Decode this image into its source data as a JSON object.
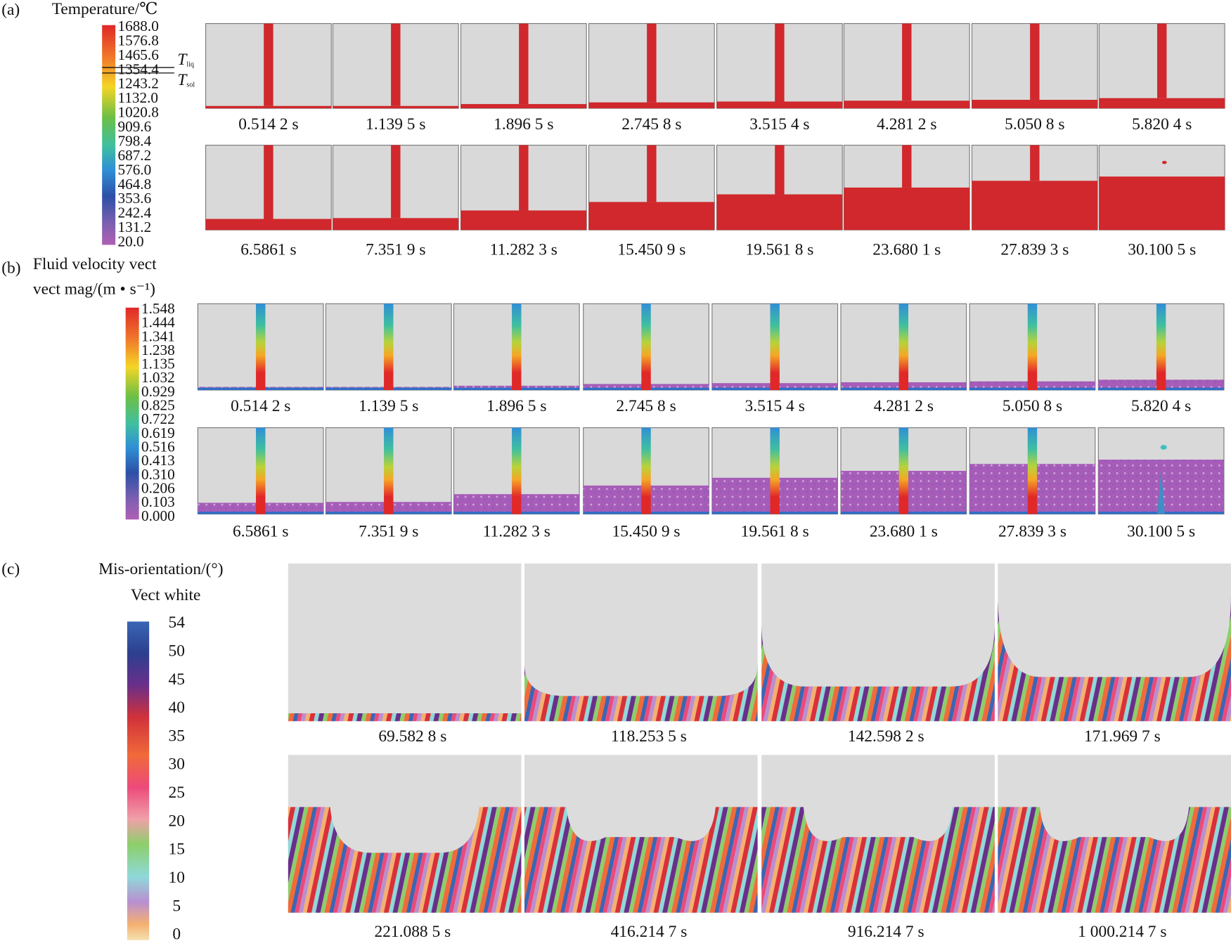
{
  "panel_a": {
    "label": "(a)",
    "legend_title": "Temperature/℃",
    "legend_ticks": [
      "1688.0",
      "1576.8",
      "1465.6",
      "1354.4",
      "1243.2",
      "1132.0",
      "1020.8",
      "909.6",
      "798.4",
      "687.2",
      "576.0",
      "464.8",
      "353.6",
      "242.4",
      "131.2",
      "20.0"
    ],
    "liquidus": {
      "symbol": "T",
      "sub": "liq"
    },
    "solidus": {
      "symbol": "T",
      "sub": "sol"
    },
    "times": [
      "0.514 2 s",
      "1.139 5 s",
      "1.896 5 s",
      "2.745 8 s",
      "3.515 4 s",
      "4.281 2 s",
      "5.050 8 s",
      "5.820 4 s",
      "6.5861 s",
      "7.351 9 s",
      "11.282 3 s",
      "15.450 9 s",
      "19.561 8 s",
      "23.680 1 s",
      "27.839 3 s",
      "30.100 5 s"
    ]
  },
  "panel_b": {
    "label": "(b)",
    "legend_title_line1": "Fluid velocity vect",
    "legend_title_line2": "vect mag/(m • s⁻¹)",
    "legend_ticks": [
      "1.548",
      "1.444",
      "1.341",
      "1.238",
      "1.135",
      "1.032",
      "0.929",
      "0.825",
      "0.722",
      "0.619",
      "0.516",
      "0.413",
      "0.310",
      "0.206",
      "0.103",
      "0.000"
    ],
    "times": [
      "0.514 2 s",
      "1.139 5 s",
      "1.896 5 s",
      "2.745 8 s",
      "3.515 4 s",
      "4.281 2 s",
      "5.050 8 s",
      "5.820 4 s",
      "6.5861 s",
      "7.351 9 s",
      "11.282 3 s",
      "15.450 9 s",
      "19.561 8 s",
      "23.680 1 s",
      "27.839 3 s",
      "30.100 5 s"
    ]
  },
  "panel_c": {
    "label": "(c)",
    "legend_title_line1": "Mis-orientation/(°)",
    "legend_title_line2": "Vect white",
    "legend_ticks": [
      "54",
      "50",
      "45",
      "40",
      "35",
      "30",
      "25",
      "20",
      "15",
      "10",
      "5",
      "0"
    ],
    "times": [
      "69.582 8 s",
      "118.253 5 s",
      "142.598 2 s",
      "171.969 7 s",
      "221.088 5 s",
      "416.214 7 s",
      "916.214 7 s",
      "1 000.214 7 s"
    ]
  }
}
